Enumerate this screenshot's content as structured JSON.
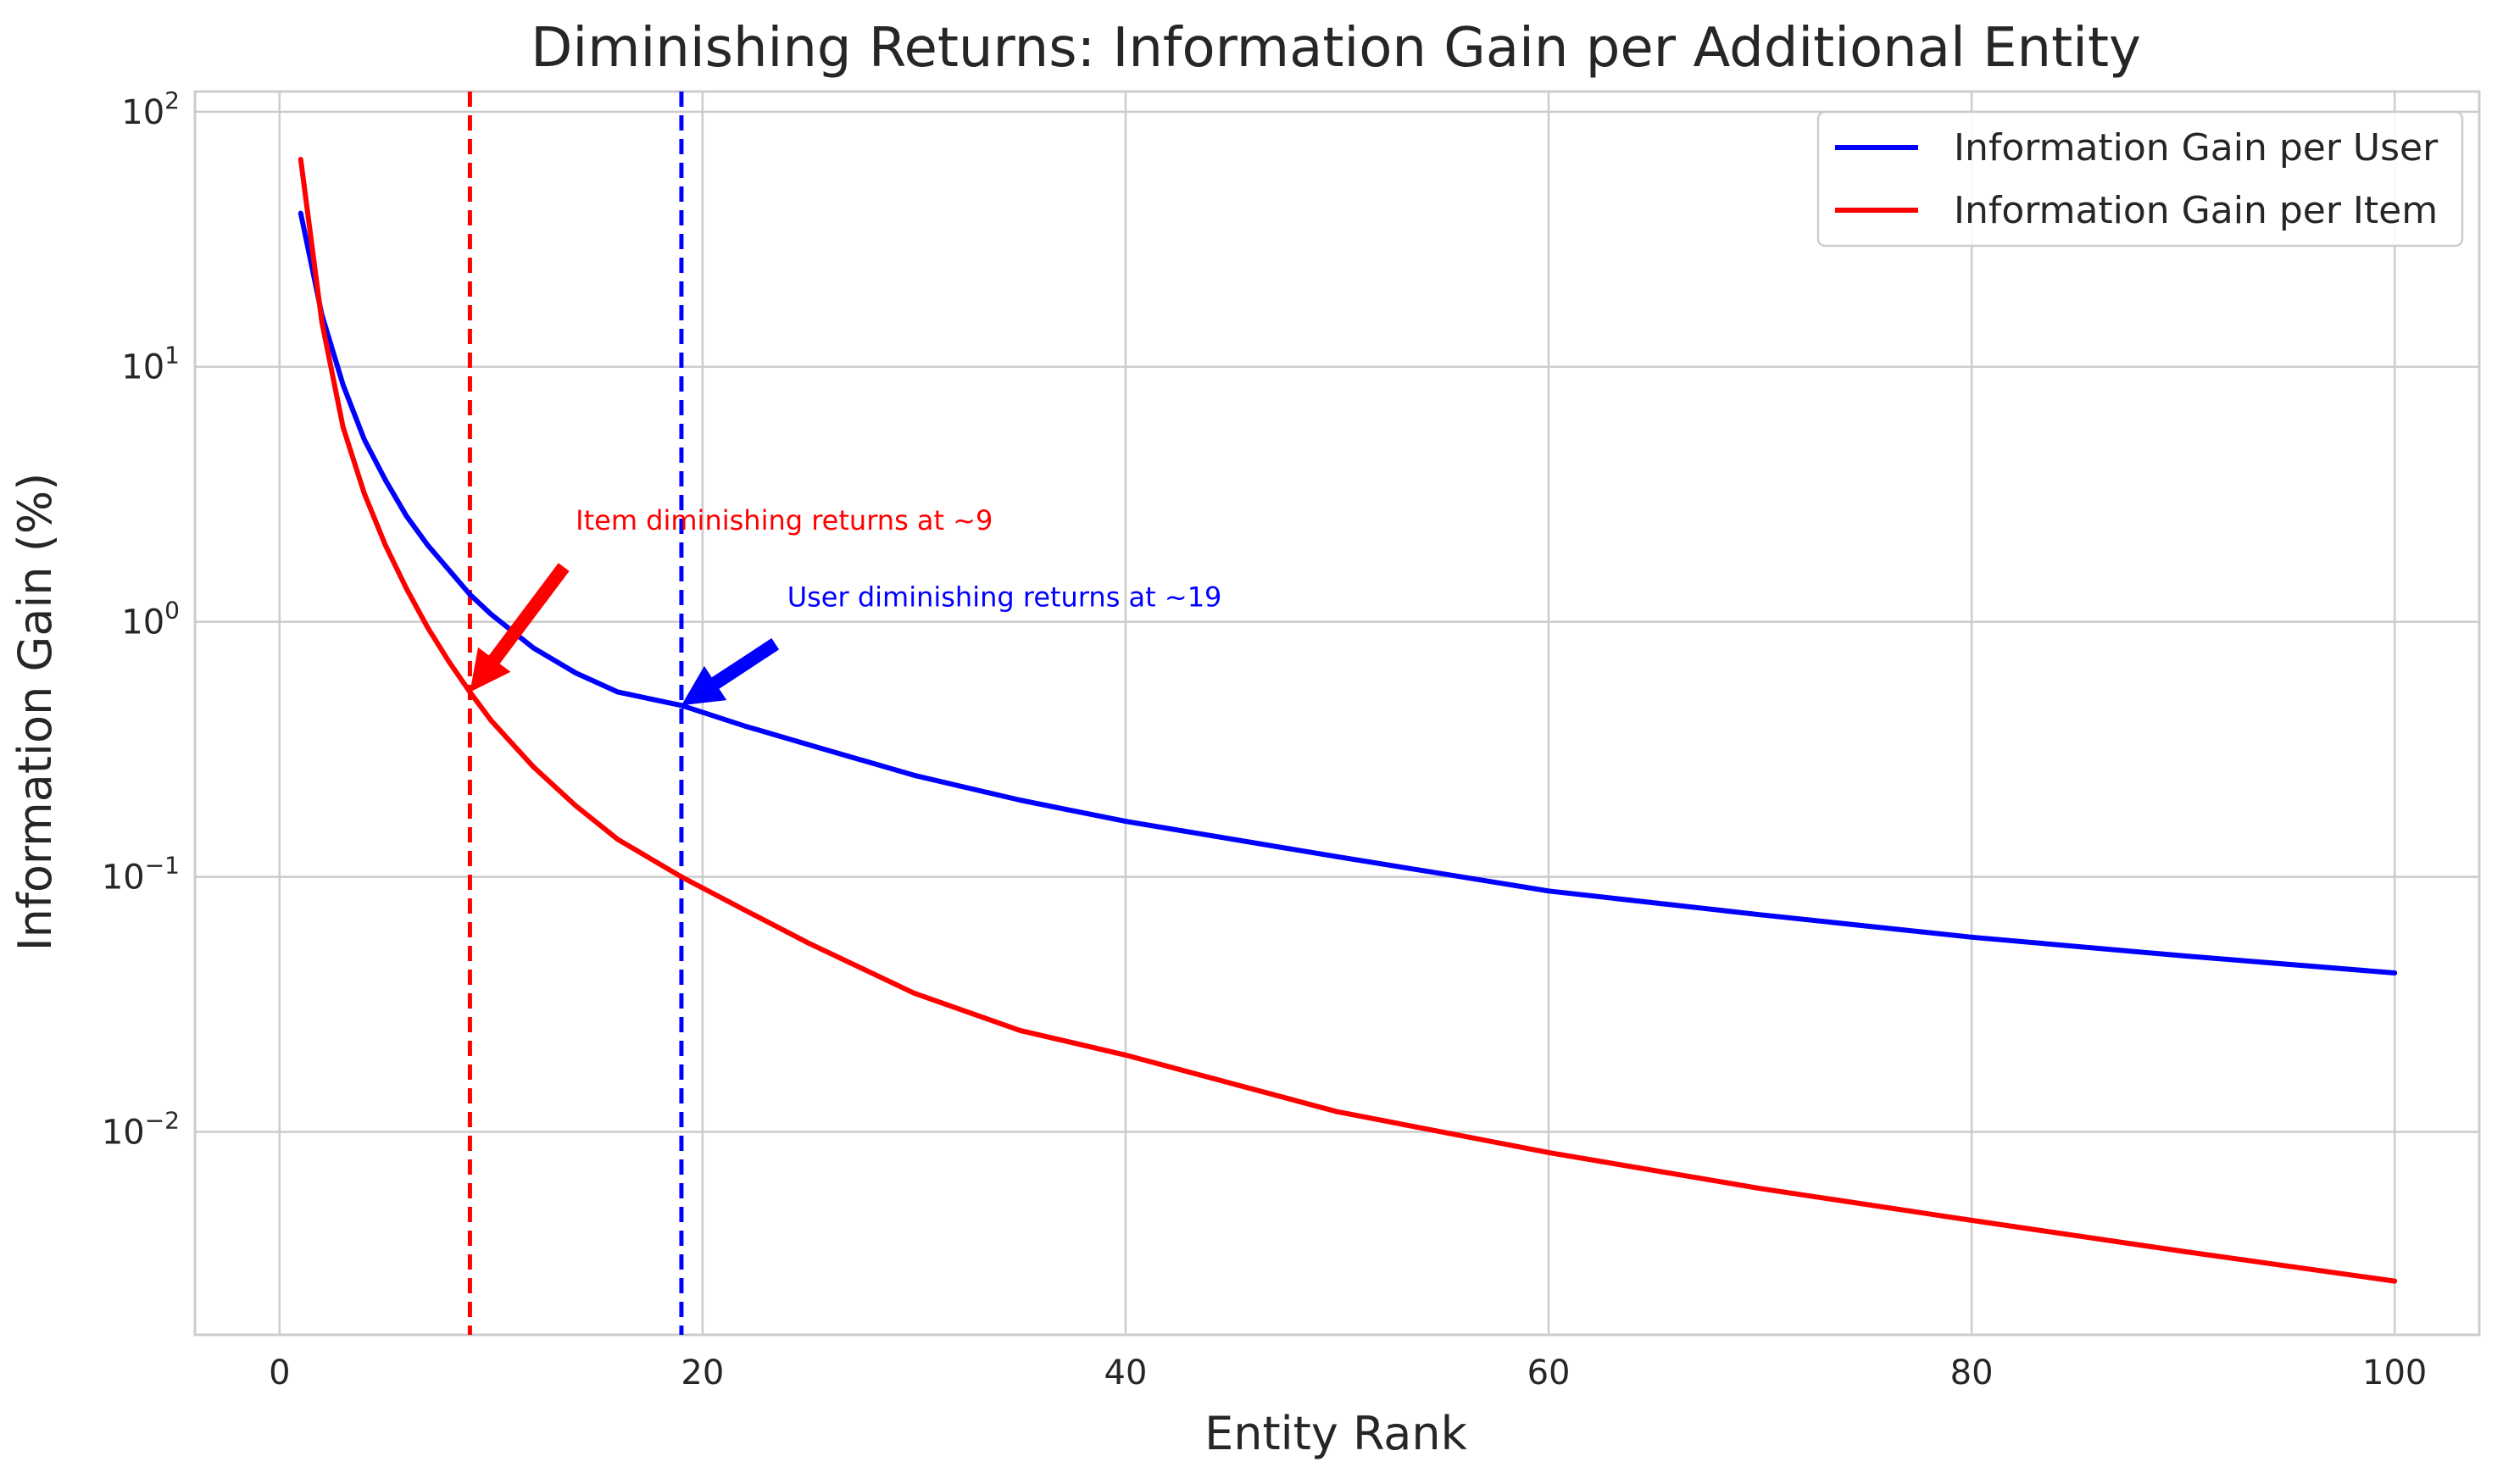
{
  "chart_data": {
    "type": "line",
    "title": "Diminishing Returns: Information Gain per Additional Entity",
    "xlabel": "Entity Rank",
    "ylabel": "Information Gain (%)",
    "xlim": [
      -4,
      104
    ],
    "ylim": [
      0.0016,
      120
    ],
    "yscale": "log",
    "grid": true,
    "legend_position": "top-right",
    "x_ticks": [
      0,
      20,
      40,
      60,
      80,
      100
    ],
    "y_ticks": [
      {
        "value": 0.01,
        "base": "10",
        "exp": "−2"
      },
      {
        "value": 0.1,
        "base": "10",
        "exp": "−1"
      },
      {
        "value": 1,
        "base": "10",
        "exp": "0"
      },
      {
        "value": 10,
        "base": "10",
        "exp": "1"
      },
      {
        "value": 100,
        "base": "10",
        "exp": "2"
      }
    ],
    "series": [
      {
        "name": "Information Gain per User",
        "color": "#0000ff",
        "x": [
          1,
          2,
          3,
          4,
          5,
          6,
          7,
          8,
          9,
          10,
          12,
          14,
          16,
          19,
          22,
          25,
          30,
          35,
          40,
          50,
          60,
          70,
          80,
          90,
          100
        ],
        "y": [
          40,
          16,
          8.5,
          5.2,
          3.6,
          2.6,
          2.0,
          1.6,
          1.28,
          1.07,
          0.79,
          0.63,
          0.53,
          0.47,
          0.39,
          0.33,
          0.25,
          0.2,
          0.165,
          0.12,
          0.088,
          0.071,
          0.058,
          0.049,
          0.042
        ]
      },
      {
        "name": "Information Gain per Item",
        "color": "#ff0000",
        "x": [
          1,
          2,
          3,
          4,
          5,
          6,
          7,
          8,
          9,
          10,
          12,
          14,
          16,
          19,
          22,
          25,
          30,
          35,
          40,
          50,
          60,
          70,
          80,
          90,
          100
        ],
        "y": [
          65,
          15,
          5.8,
          3.2,
          2.0,
          1.35,
          0.95,
          0.7,
          0.53,
          0.41,
          0.27,
          0.19,
          0.14,
          0.1,
          0.074,
          0.055,
          0.035,
          0.025,
          0.02,
          0.012,
          0.0083,
          0.006,
          0.0045,
          0.0034,
          0.0026
        ]
      }
    ],
    "vlines": [
      {
        "x": 9,
        "color": "#ff0000",
        "style": "dashed"
      },
      {
        "x": 19,
        "color": "#0000ff",
        "style": "dashed"
      }
    ],
    "annotations": [
      {
        "text": "Item diminishing returns at ~9",
        "color": "#ff0000",
        "text_x": 14,
        "text_y": 2.0,
        "arrow_x": 9,
        "arrow_y": 0.53
      },
      {
        "text": "User diminishing returns at ~19",
        "color": "#0000ff",
        "text_x": 24,
        "text_y": 1.0,
        "arrow_x": 19,
        "arrow_y": 0.47
      }
    ]
  }
}
